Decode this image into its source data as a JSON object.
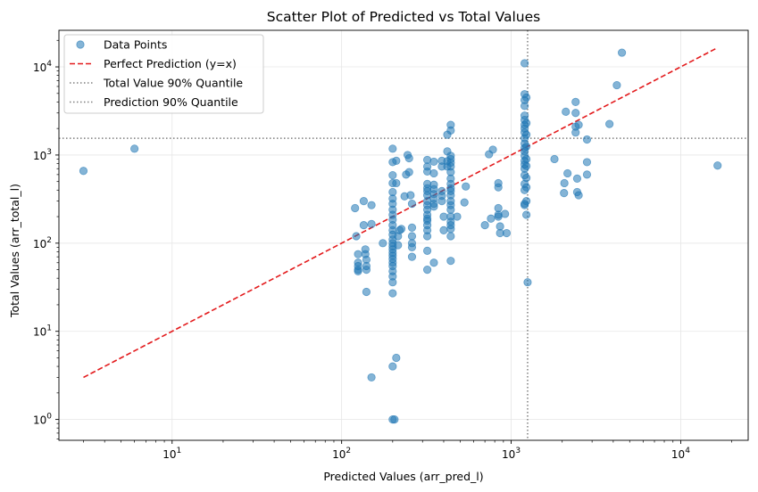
{
  "chart_data": {
    "type": "scatter",
    "title": "Scatter Plot of Predicted vs Total Values",
    "xlabel": "Predicted Values (arr_pred_l)",
    "ylabel": "Total Values (arr_total_l)",
    "xscale": "log",
    "yscale": "log",
    "xlim": [
      2.15,
      25000
    ],
    "ylim": [
      0.58,
      26000
    ],
    "grid": true,
    "legend_position": "top-left",
    "xticks": [
      {
        "value": 10,
        "base": "10",
        "exp": "1"
      },
      {
        "value": 100,
        "base": "10",
        "exp": "2"
      },
      {
        "value": 1000,
        "base": "10",
        "exp": "3"
      },
      {
        "value": 10000,
        "base": "10",
        "exp": "4"
      }
    ],
    "yticks": [
      {
        "value": 1,
        "base": "10",
        "exp": "0"
      },
      {
        "value": 10,
        "base": "10",
        "exp": "1"
      },
      {
        "value": 100,
        "base": "10",
        "exp": "2"
      },
      {
        "value": 1000,
        "base": "10",
        "exp": "3"
      },
      {
        "value": 10000,
        "base": "10",
        "exp": "4"
      }
    ],
    "colors": {
      "points": "#1f77b4",
      "perfect": "#e31a1c",
      "quantile": "#7f7f7f",
      "grid": "#e6e6e6"
    },
    "legend": [
      {
        "label": "Data Points",
        "style": "marker"
      },
      {
        "label": "Perfect Prediction (y=x)",
        "style": "dashed-red"
      },
      {
        "label": "Total Value 90% Quantile",
        "style": "dotted-gray"
      },
      {
        "label": "Prediction 90% Quantile",
        "style": "dotted-gray"
      }
    ],
    "perfect_line": {
      "x": [
        3,
        16500
      ],
      "y": [
        3,
        16500
      ]
    },
    "quantiles": {
      "total_value_90": 1550,
      "prediction_90": 1250
    },
    "series": [
      {
        "name": "Data Points",
        "points": [
          [
            3,
            660
          ],
          [
            6,
            1180
          ],
          [
            120,
            250
          ],
          [
            122,
            120
          ],
          [
            125,
            75
          ],
          [
            125,
            60
          ],
          [
            125,
            55
          ],
          [
            125,
            50
          ],
          [
            125,
            48
          ],
          [
            135,
            300
          ],
          [
            135,
            160
          ],
          [
            138,
            85
          ],
          [
            138,
            75
          ],
          [
            140,
            65
          ],
          [
            140,
            55
          ],
          [
            140,
            50
          ],
          [
            140,
            28
          ],
          [
            150,
            270
          ],
          [
            150,
            165
          ],
          [
            150,
            3
          ],
          [
            175,
            100
          ],
          [
            200,
            1180
          ],
          [
            200,
            830
          ],
          [
            200,
            590
          ],
          [
            200,
            480
          ],
          [
            200,
            380
          ],
          [
            200,
            320
          ],
          [
            200,
            280
          ],
          [
            200,
            240
          ],
          [
            200,
            210
          ],
          [
            200,
            185
          ],
          [
            200,
            160
          ],
          [
            200,
            140
          ],
          [
            200,
            125
          ],
          [
            200,
            110
          ],
          [
            200,
            100
          ],
          [
            200,
            92
          ],
          [
            200,
            85
          ],
          [
            200,
            78
          ],
          [
            200,
            72
          ],
          [
            200,
            66
          ],
          [
            200,
            60
          ],
          [
            200,
            55
          ],
          [
            200,
            48
          ],
          [
            200,
            42
          ],
          [
            200,
            36
          ],
          [
            200,
            27
          ],
          [
            200,
            4
          ],
          [
            200,
            1
          ],
          [
            205,
            1
          ],
          [
            210,
            860
          ],
          [
            210,
            480
          ],
          [
            210,
            5
          ],
          [
            215,
            120
          ],
          [
            215,
            95
          ],
          [
            220,
            140
          ],
          [
            225,
            145
          ],
          [
            235,
            340
          ],
          [
            240,
            600
          ],
          [
            245,
            1000
          ],
          [
            250,
            920
          ],
          [
            250,
            640
          ],
          [
            255,
            350
          ],
          [
            260,
            280
          ],
          [
            260,
            150
          ],
          [
            260,
            120
          ],
          [
            260,
            100
          ],
          [
            260,
            90
          ],
          [
            260,
            70
          ],
          [
            320,
            880
          ],
          [
            320,
            740
          ],
          [
            320,
            650
          ],
          [
            320,
            470
          ],
          [
            320,
            420
          ],
          [
            320,
            390
          ],
          [
            320,
            350
          ],
          [
            320,
            300
          ],
          [
            320,
            270
          ],
          [
            320,
            240
          ],
          [
            320,
            210
          ],
          [
            320,
            190
          ],
          [
            320,
            180
          ],
          [
            320,
            160
          ],
          [
            320,
            140
          ],
          [
            320,
            120
          ],
          [
            320,
            82
          ],
          [
            320,
            50
          ],
          [
            350,
            840
          ],
          [
            350,
            620
          ],
          [
            350,
            460
          ],
          [
            350,
            410
          ],
          [
            350,
            360
          ],
          [
            350,
            320
          ],
          [
            350,
            280
          ],
          [
            350,
            260
          ],
          [
            350,
            60
          ],
          [
            390,
            860
          ],
          [
            390,
            740
          ],
          [
            390,
            390
          ],
          [
            390,
            345
          ],
          [
            390,
            300
          ],
          [
            400,
            200
          ],
          [
            400,
            140
          ],
          [
            420,
            1700
          ],
          [
            420,
            1100
          ],
          [
            420,
            850
          ],
          [
            420,
            740
          ],
          [
            440,
            2200
          ],
          [
            440,
            1900
          ],
          [
            440,
            980
          ],
          [
            440,
            900
          ],
          [
            440,
            820
          ],
          [
            440,
            740
          ],
          [
            440,
            640
          ],
          [
            440,
            540
          ],
          [
            440,
            470
          ],
          [
            440,
            420
          ],
          [
            440,
            390
          ],
          [
            440,
            350
          ],
          [
            440,
            300
          ],
          [
            440,
            270
          ],
          [
            440,
            240
          ],
          [
            440,
            200
          ],
          [
            440,
            175
          ],
          [
            440,
            160
          ],
          [
            440,
            145
          ],
          [
            440,
            120
          ],
          [
            440,
            63
          ],
          [
            480,
            200
          ],
          [
            530,
            290
          ],
          [
            540,
            440
          ],
          [
            700,
            160
          ],
          [
            740,
            1020
          ],
          [
            760,
            190
          ],
          [
            780,
            1150
          ],
          [
            840,
            480
          ],
          [
            840,
            430
          ],
          [
            840,
            250
          ],
          [
            840,
            210
          ],
          [
            840,
            200
          ],
          [
            860,
            155
          ],
          [
            860,
            130
          ],
          [
            920,
            215
          ],
          [
            940,
            130
          ],
          [
            1200,
            11000
          ],
          [
            1200,
            4900
          ],
          [
            1200,
            4200
          ],
          [
            1200,
            3600
          ],
          [
            1200,
            2800
          ],
          [
            1200,
            2500
          ],
          [
            1200,
            2200
          ],
          [
            1200,
            2000
          ],
          [
            1200,
            1800
          ],
          [
            1200,
            1550
          ],
          [
            1200,
            1350
          ],
          [
            1200,
            1200
          ],
          [
            1200,
            1100
          ],
          [
            1200,
            980
          ],
          [
            1200,
            860
          ],
          [
            1200,
            780
          ],
          [
            1200,
            700
          ],
          [
            1200,
            590
          ],
          [
            1200,
            470
          ],
          [
            1200,
            400
          ],
          [
            1200,
            280
          ],
          [
            1200,
            270
          ],
          [
            1230,
            4500
          ],
          [
            1230,
            2300
          ],
          [
            1230,
            1700
          ],
          [
            1230,
            1250
          ],
          [
            1230,
            900
          ],
          [
            1230,
            750
          ],
          [
            1230,
            550
          ],
          [
            1230,
            430
          ],
          [
            1230,
            300
          ],
          [
            1230,
            210
          ],
          [
            1250,
            36
          ],
          [
            1800,
            900
          ],
          [
            2050,
            370
          ],
          [
            2060,
            480
          ],
          [
            2100,
            3100
          ],
          [
            2150,
            620
          ],
          [
            2400,
            4000
          ],
          [
            2400,
            3000
          ],
          [
            2400,
            2100
          ],
          [
            2400,
            1800
          ],
          [
            2450,
            540
          ],
          [
            2450,
            380
          ],
          [
            2500,
            350
          ],
          [
            2500,
            2200
          ],
          [
            2800,
            1500
          ],
          [
            2800,
            830
          ],
          [
            2800,
            600
          ],
          [
            3800,
            2250
          ],
          [
            4200,
            6200
          ],
          [
            4500,
            14500
          ],
          [
            16500,
            760
          ]
        ]
      }
    ]
  }
}
